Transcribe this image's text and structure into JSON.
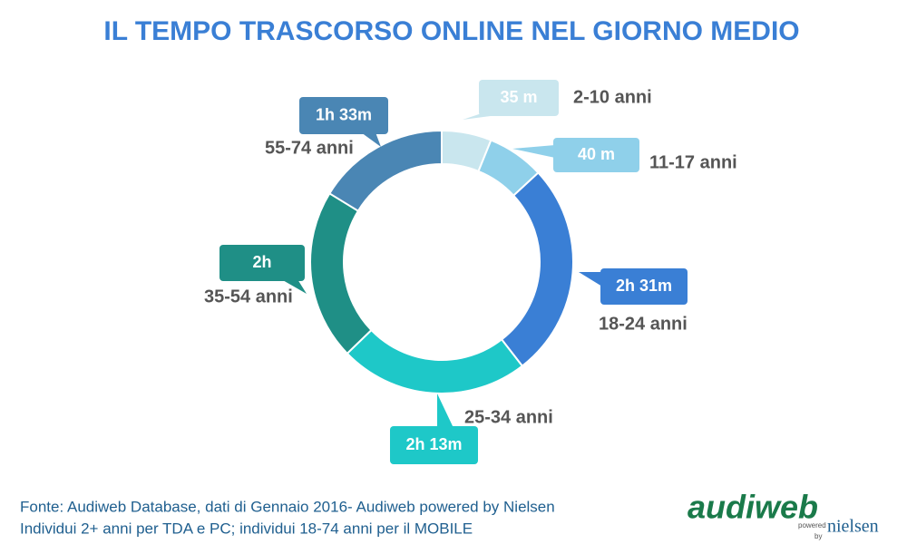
{
  "chart_data": {
    "type": "donut",
    "title": "IL TEMPO TRASCORSO ONLINE NEL GIORNO MEDIO",
    "categories": [
      "2-10 anni",
      "11-17 anni",
      "18-24 anni",
      "25-34 anni",
      "35-54 anni",
      "55-74 anni"
    ],
    "values": [
      35,
      40,
      151,
      133,
      120,
      93
    ],
    "value_labels": [
      "35 m",
      "40 m",
      "2h 31m",
      "2h 13m",
      "2h",
      "1h 33m"
    ],
    "colors": [
      "#c9e6ee",
      "#8fd0ea",
      "#3a7fd5",
      "#1ec8c8",
      "#1f8f86",
      "#4a86b4"
    ]
  },
  "footer": [
    "Fonte: Audiweb  Database, dati di Gennaio  2016- Audiweb  powered by Nielsen",
    "Individui  2+ anni  per TDA e PC; individui  18-74 anni  per il MOBILE"
  ],
  "logo": {
    "brand": "audiweb",
    "powered": "powered",
    "by": "by",
    "partner": "nielsen"
  }
}
